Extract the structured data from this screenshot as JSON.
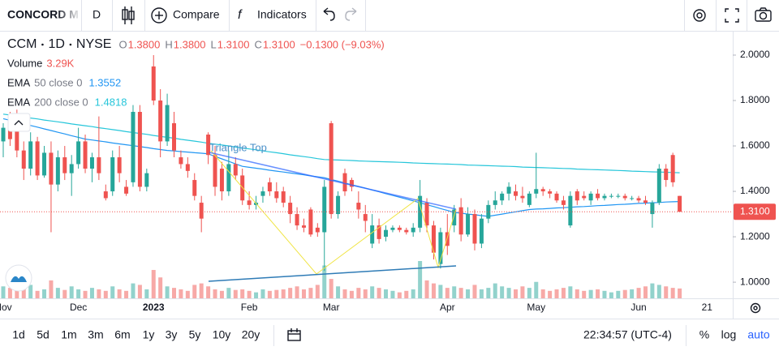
{
  "toolbar": {
    "symbol": "CONCORD M",
    "interval": "D",
    "compare": "Compare",
    "indicators": "Indicators"
  },
  "chart_data": {
    "type": "candlestick",
    "legend": {
      "symbol": "CCM",
      "interval": "1D",
      "exchange": "NYSE",
      "ohlc": [
        {
          "key": "O",
          "value": "1.3800"
        },
        {
          "key": "H",
          "value": "1.3800"
        },
        {
          "key": "L",
          "value": "1.3100"
        },
        {
          "key": "C",
          "value": "1.3100"
        }
      ],
      "change": "−0.1300 (−9.03%)"
    },
    "annotation": "Triangle Top",
    "up_color": "#26a69a",
    "down_color": "#ef5350",
    "ylim": [
      0.929,
      2.107
    ],
    "yticks": [
      {
        "value": 1.0,
        "label": "1.0000"
      },
      {
        "value": 1.2,
        "label": "1.2000"
      },
      {
        "value": 1.4,
        "label": "1.4000"
      },
      {
        "value": 1.6,
        "label": "1.6000"
      },
      {
        "value": 1.8,
        "label": "1.8000"
      },
      {
        "value": 2.0,
        "label": "2.0000"
      }
    ],
    "grid": false,
    "categories": [
      "Nov",
      null,
      null,
      null,
      null,
      null,
      null,
      null,
      null,
      null,
      null,
      "Dec",
      null,
      null,
      null,
      null,
      null,
      null,
      null,
      null,
      null,
      null,
      "2023",
      null,
      null,
      null,
      null,
      null,
      null,
      null,
      null,
      null,
      null,
      null,
      null,
      null,
      "Feb",
      null,
      null,
      null,
      null,
      null,
      null,
      null,
      null,
      null,
      null,
      null,
      "Mar",
      null,
      null,
      null,
      null,
      null,
      null,
      null,
      null,
      null,
      null,
      null,
      null,
      null,
      null,
      null,
      null,
      "Apr",
      null,
      null,
      null,
      null,
      null,
      null,
      null,
      null,
      null,
      null,
      null,
      null,
      "May",
      null,
      null,
      null,
      null,
      null,
      null,
      null,
      null,
      null,
      null,
      null,
      null,
      null,
      null,
      "Jun",
      null,
      null,
      null,
      null,
      null,
      null,
      null,
      null,
      null,
      "21"
    ],
    "ohlc": [
      [
        1.62,
        1.7,
        1.55,
        1.68
      ],
      [
        1.68,
        1.75,
        1.6,
        1.63
      ],
      [
        1.72,
        1.76,
        1.55,
        1.58
      ],
      [
        1.58,
        1.62,
        1.45,
        1.5
      ],
      [
        1.5,
        1.66,
        1.47,
        1.62
      ],
      [
        1.62,
        1.64,
        1.45,
        1.47
      ],
      [
        1.47,
        1.6,
        1.46,
        1.57
      ],
      [
        1.57,
        1.62,
        1.22,
        1.43
      ],
      [
        1.43,
        1.58,
        1.4,
        1.55
      ],
      [
        1.55,
        1.6,
        1.45,
        1.48
      ],
      [
        1.48,
        1.56,
        1.38,
        1.52
      ],
      [
        1.52,
        1.68,
        1.5,
        1.62
      ],
      [
        1.62,
        1.65,
        1.48,
        1.5
      ],
      [
        1.5,
        1.57,
        1.44,
        1.55
      ],
      [
        1.55,
        1.73,
        1.45,
        1.48
      ],
      [
        1.4,
        1.43,
        1.36,
        1.37
      ],
      [
        1.4,
        1.58,
        1.38,
        1.55
      ],
      [
        1.55,
        1.6,
        1.44,
        1.48
      ],
      [
        1.42,
        1.45,
        1.38,
        1.39
      ],
      [
        1.44,
        1.78,
        1.42,
        1.75
      ],
      [
        1.75,
        1.78,
        1.4,
        1.42
      ],
      [
        1.42,
        1.5,
        1.4,
        1.48
      ],
      [
        1.95,
        2.0,
        1.78,
        1.8
      ],
      [
        1.8,
        1.85,
        1.55,
        1.62
      ],
      [
        1.62,
        1.83,
        1.6,
        1.78
      ],
      [
        1.7,
        1.75,
        1.55,
        1.58
      ],
      [
        1.55,
        1.58,
        1.5,
        1.52
      ],
      [
        1.52,
        1.55,
        1.46,
        1.49
      ],
      [
        1.45,
        1.48,
        1.36,
        1.38
      ],
      [
        1.35,
        1.38,
        1.22,
        1.28
      ],
      [
        1.65,
        1.66,
        1.52,
        1.56
      ],
      [
        1.56,
        1.6,
        1.38,
        1.42
      ],
      [
        1.5,
        1.53,
        1.36,
        1.4
      ],
      [
        1.4,
        1.58,
        1.38,
        1.52
      ],
      [
        1.52,
        1.55,
        1.45,
        1.47
      ],
      [
        1.47,
        1.5,
        1.34,
        1.36
      ],
      [
        1.36,
        1.4,
        1.32,
        1.34
      ],
      [
        1.34,
        1.38,
        1.32,
        1.35
      ],
      [
        1.38,
        1.42,
        1.35,
        1.4
      ],
      [
        1.44,
        1.46,
        1.38,
        1.4
      ],
      [
        1.4,
        1.44,
        1.35,
        1.37
      ],
      [
        1.4,
        1.42,
        1.33,
        1.35
      ],
      [
        1.35,
        1.38,
        1.26,
        1.3
      ],
      [
        1.3,
        1.33,
        1.23,
        1.25
      ],
      [
        1.25,
        1.28,
        1.22,
        1.24
      ],
      [
        1.32,
        1.33,
        1.2,
        1.21
      ],
      [
        1.24,
        1.26,
        1.2,
        1.22
      ],
      [
        1.22,
        1.45,
        1.05,
        1.42
      ],
      [
        1.7,
        1.71,
        1.28,
        1.3
      ],
      [
        1.3,
        1.4,
        1.28,
        1.38
      ],
      [
        1.48,
        1.5,
        1.38,
        1.4
      ],
      [
        1.45,
        1.46,
        1.4,
        1.42
      ],
      [
        1.35,
        1.4,
        1.28,
        1.32
      ],
      [
        1.3,
        1.34,
        1.22,
        1.27
      ],
      [
        1.17,
        1.3,
        1.15,
        1.25
      ],
      [
        1.25,
        1.28,
        1.17,
        1.19
      ],
      [
        1.2,
        1.25,
        1.18,
        1.23
      ],
      [
        1.23,
        1.25,
        1.22,
        1.24
      ],
      [
        1.24,
        1.25,
        1.22,
        1.23
      ],
      [
        1.23,
        1.24,
        1.21,
        1.22
      ],
      [
        1.22,
        1.26,
        1.2,
        1.24
      ],
      [
        1.24,
        1.45,
        1.22,
        1.38
      ],
      [
        1.35,
        1.37,
        1.22,
        1.25
      ],
      [
        1.25,
        1.27,
        1.1,
        1.13
      ],
      [
        1.08,
        1.24,
        1.06,
        1.22
      ],
      [
        1.22,
        1.3,
        1.12,
        1.16
      ],
      [
        1.25,
        1.34,
        1.22,
        1.32
      ],
      [
        1.33,
        1.37,
        1.18,
        1.21
      ],
      [
        1.21,
        1.33,
        1.2,
        1.3
      ],
      [
        1.3,
        1.32,
        1.14,
        1.17
      ],
      [
        1.17,
        1.3,
        1.15,
        1.28
      ],
      [
        1.28,
        1.36,
        1.26,
        1.34
      ],
      [
        1.34,
        1.4,
        1.32,
        1.36
      ],
      [
        1.36,
        1.4,
        1.34,
        1.39
      ],
      [
        1.39,
        1.44,
        1.36,
        1.42
      ],
      [
        1.4,
        1.43,
        1.36,
        1.38
      ],
      [
        1.38,
        1.42,
        1.35,
        1.37
      ],
      [
        1.34,
        1.4,
        1.33,
        1.39
      ],
      [
        1.39,
        1.57,
        1.37,
        1.41
      ],
      [
        1.41,
        1.42,
        1.38,
        1.4
      ],
      [
        1.4,
        1.41,
        1.37,
        1.39
      ],
      [
        1.39,
        1.4,
        1.35,
        1.36
      ],
      [
        1.36,
        1.38,
        1.32,
        1.34
      ],
      [
        1.25,
        1.4,
        1.24,
        1.38
      ],
      [
        1.4,
        1.41,
        1.34,
        1.36
      ],
      [
        1.38,
        1.4,
        1.36,
        1.37
      ],
      [
        1.36,
        1.4,
        1.34,
        1.39
      ],
      [
        1.39,
        1.41,
        1.36,
        1.37
      ],
      [
        1.37,
        1.39,
        1.36,
        1.38
      ],
      [
        1.38,
        1.39,
        1.37,
        1.38
      ],
      [
        1.38,
        1.39,
        1.37,
        1.38
      ],
      [
        1.38,
        1.39,
        1.36,
        1.37
      ],
      [
        1.37,
        1.38,
        1.36,
        1.37
      ],
      [
        1.37,
        1.38,
        1.35,
        1.36
      ],
      [
        1.36,
        1.38,
        1.34,
        1.35
      ],
      [
        1.3,
        1.36,
        1.24,
        1.35
      ],
      [
        1.35,
        1.52,
        1.34,
        1.5
      ],
      [
        1.5,
        1.52,
        1.42,
        1.45
      ],
      [
        1.56,
        1.57,
        1.42,
        1.44
      ],
      [
        1.38,
        1.38,
        1.31,
        1.31
      ],
      null,
      null,
      null,
      null
    ],
    "indicators": [
      {
        "name": "Volume",
        "value": "3.29K",
        "color": "#ef5350",
        "values": [
          4000,
          3500,
          5000,
          3000,
          4500,
          2500,
          3000,
          6000,
          3500,
          2800,
          4000,
          3000,
          2500,
          3500,
          3000,
          2500,
          4000,
          3000,
          2500,
          5000,
          4500,
          3000,
          9500,
          7000,
          4000,
          3500,
          3000,
          2500,
          4500,
          5000,
          4000,
          3000,
          2500,
          3500,
          2800,
          3000,
          2500,
          2000,
          3000,
          2500,
          2800,
          3000,
          3500,
          4000,
          3000,
          3500,
          4500,
          11000,
          6500,
          4000,
          3000,
          2500,
          3500,
          3000,
          4000,
          3500,
          3000,
          2500,
          2000,
          2500,
          3000,
          12500,
          6000,
          5000,
          4500,
          3500,
          4000,
          3500,
          3000,
          4500,
          3000,
          3500,
          5000,
          4000,
          3500,
          3000,
          4000,
          3500,
          5500,
          3000,
          2500,
          3000,
          3500,
          4000,
          3000,
          2500,
          2800,
          3000,
          2500,
          2000,
          2500,
          2800,
          3000,
          3500,
          4000,
          5000,
          4500,
          4000,
          3500,
          3290,
          null,
          null,
          null,
          null
        ]
      },
      {
        "name": "EMA",
        "params": "50 close 0",
        "value": "1.3552",
        "color": "#2196f3",
        "values": [
          1.72,
          1.713,
          1.705,
          1.698,
          1.69,
          1.683,
          1.675,
          1.668,
          1.66,
          1.653,
          1.645,
          1.638,
          1.63,
          1.626,
          1.622,
          1.618,
          1.613,
          1.609,
          1.605,
          1.601,
          1.597,
          1.593,
          1.588,
          1.584,
          1.58,
          1.578,
          1.575,
          1.573,
          1.57,
          1.568,
          1.565,
          1.554,
          1.543,
          1.532,
          1.521,
          1.51,
          1.506,
          1.502,
          1.498,
          1.493,
          1.489,
          1.485,
          1.481,
          1.477,
          1.473,
          1.468,
          1.464,
          1.46,
          1.452,
          1.445,
          1.437,
          1.429,
          1.422,
          1.414,
          1.406,
          1.398,
          1.39,
          1.382,
          1.374,
          1.366,
          1.358,
          1.35,
          1.341,
          1.333,
          1.324,
          1.316,
          1.307,
          1.304,
          1.3,
          1.297,
          1.293,
          1.29,
          1.295,
          1.3,
          1.305,
          1.31,
          1.315,
          1.32,
          1.322,
          1.323,
          1.325,
          1.327,
          1.328,
          1.33,
          1.332,
          1.333,
          1.335,
          1.337,
          1.338,
          1.34,
          1.342,
          1.343,
          1.345,
          1.347,
          1.348,
          1.35,
          1.351,
          1.353,
          1.354,
          1.3552,
          null,
          null,
          null,
          null
        ]
      },
      {
        "name": "EMA",
        "params": "200 close 0",
        "value": "1.4818",
        "color": "#26c6da",
        "values": [
          1.74,
          1.736,
          1.731,
          1.727,
          1.723,
          1.719,
          1.714,
          1.71,
          1.706,
          1.702,
          1.697,
          1.693,
          1.689,
          1.685,
          1.68,
          1.676,
          1.672,
          1.668,
          1.663,
          1.659,
          1.655,
          1.651,
          1.646,
          1.642,
          1.638,
          1.634,
          1.629,
          1.625,
          1.621,
          1.617,
          1.612,
          1.608,
          1.604,
          1.6,
          1.595,
          1.591,
          1.587,
          1.583,
          1.578,
          1.574,
          1.57,
          1.566,
          1.561,
          1.557,
          1.553,
          1.549,
          1.544,
          1.54,
          1.539,
          1.538,
          1.537,
          1.536,
          1.534,
          1.533,
          1.532,
          1.531,
          1.53,
          1.529,
          1.528,
          1.527,
          1.525,
          1.524,
          1.523,
          1.522,
          1.521,
          1.52,
          1.519,
          1.518,
          1.516,
          1.515,
          1.514,
          1.513,
          1.512,
          1.511,
          1.51,
          1.509,
          1.507,
          1.506,
          1.505,
          1.504,
          1.503,
          1.502,
          1.501,
          1.5,
          1.498,
          1.497,
          1.496,
          1.495,
          1.494,
          1.493,
          1.492,
          1.491,
          1.489,
          1.488,
          1.487,
          1.486,
          1.485,
          1.484,
          1.483,
          1.4818,
          null,
          null,
          null,
          null
        ]
      }
    ]
  },
  "footer": {
    "ranges": [
      "1d",
      "5d",
      "1m",
      "3m",
      "6m",
      "1y",
      "3y",
      "5y",
      "10y",
      "20y"
    ],
    "time": "22:34:57 (UTC-4)",
    "percent": "%",
    "log": "log",
    "auto": "auto"
  }
}
